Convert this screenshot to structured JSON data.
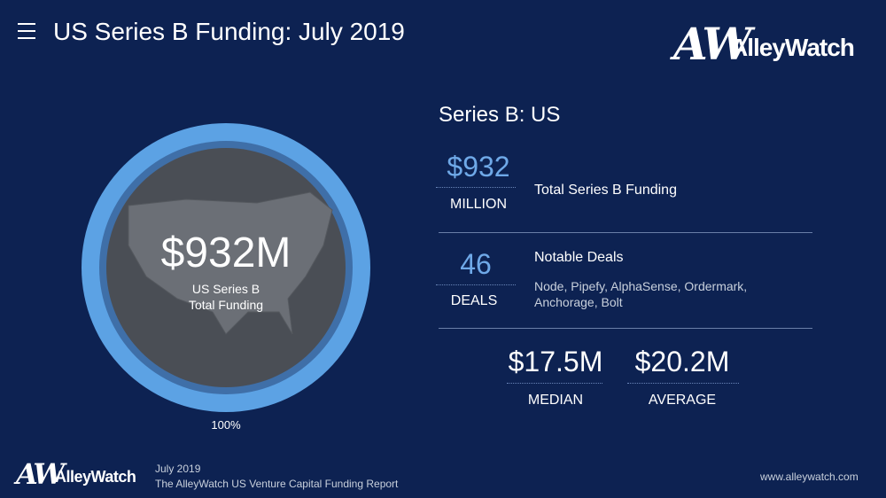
{
  "header": {
    "title": "US Series B Funding: July 2019",
    "logo": {
      "mark": "AW",
      "name": "AlleyWatch"
    }
  },
  "circle": {
    "amount": "$932M",
    "line1": "US Series B",
    "line2": "Total Funding",
    "ring_label": "100%"
  },
  "panel": {
    "title": "Series B: US",
    "stats": [
      {
        "value": "$932",
        "unit": "MILLION",
        "label": "Total Series B Funding"
      },
      {
        "value": "46",
        "unit": "DEALS",
        "label": "Notable Deals",
        "details": [
          "Node, Pipefy, AlphaSense, Ordermark,",
          "Anchorage, Bolt"
        ]
      }
    ],
    "summary": [
      {
        "value": "$17.5M",
        "label": "MEDIAN"
      },
      {
        "value": "$20.2M",
        "label": "AVERAGE"
      }
    ]
  },
  "footer": {
    "logo": {
      "mark": "AW",
      "name": "AlleyWatch"
    },
    "date": "July 2019",
    "report": "The AlleyWatch US Venture Capital Funding Report",
    "url": "www.alleywatch.com"
  }
}
